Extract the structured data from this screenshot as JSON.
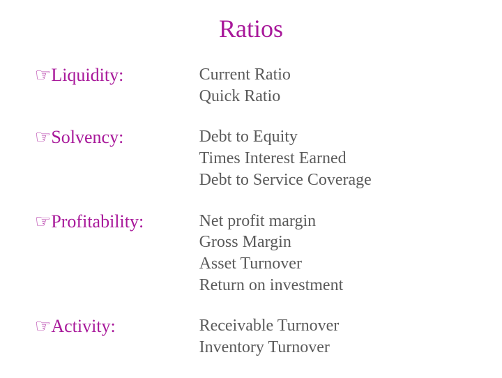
{
  "title": "Ratios",
  "colors": {
    "accent": "#a8189a",
    "item_text": "#5a5a5a",
    "background": "#ffffff"
  },
  "typography": {
    "title_fontsize": 36,
    "category_fontsize": 26,
    "item_fontsize": 24,
    "font_family": "Times New Roman"
  },
  "bullet_glyph": "☞",
  "sections": [
    {
      "category": "Liquidity:",
      "items": [
        "Current Ratio",
        "Quick Ratio"
      ]
    },
    {
      "category": "Solvency:",
      "items": [
        "Debt to Equity",
        "Times Interest Earned",
        "Debt to Service Coverage"
      ]
    },
    {
      "category": "Profitability:",
      "items": [
        "Net profit margin",
        "Gross Margin",
        "Asset Turnover",
        "Return on investment"
      ]
    },
    {
      "category": "Activity:",
      "items": [
        "Receivable Turnover",
        "Inventory Turnover"
      ]
    }
  ]
}
